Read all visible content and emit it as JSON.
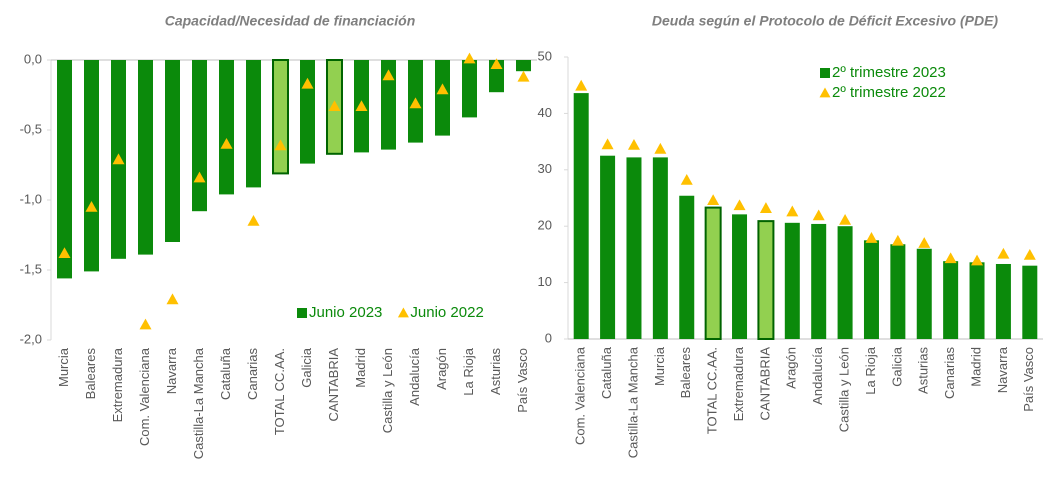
{
  "chart_data": [
    {
      "type": "bar",
      "title": "Capacidad/Necesidad de financiación",
      "categories": [
        "Murcia",
        "Baleares",
        "Extremadura",
        "Com. Valenciana",
        "Navarra",
        "Castilla-La Mancha",
        "Cataluña",
        "Canarias",
        "TOTAL CC.AA.",
        "Galicia",
        "CANTABRIA",
        "Madrid",
        "Castilla y León",
        "Andalucía",
        "Aragón",
        "La Rioja",
        "Asturias",
        "País Vasco"
      ],
      "series": [
        {
          "name": "Junio 2023",
          "mark": "bar",
          "color": "#0b8a0b",
          "colors": [
            "#0b8a0b",
            "#0b8a0b",
            "#0b8a0b",
            "#0b8a0b",
            "#0b8a0b",
            "#0b8a0b",
            "#0b8a0b",
            "#0b8a0b",
            "#92d050",
            "#0b8a0b",
            "#92d050",
            "#0b8a0b",
            "#0b8a0b",
            "#0b8a0b",
            "#0b8a0b",
            "#0b8a0b",
            "#0b8a0b",
            "#0b8a0b"
          ],
          "values": [
            -1.56,
            -1.51,
            -1.42,
            -1.39,
            -1.3,
            -1.08,
            -0.96,
            -0.91,
            -0.81,
            -0.74,
            -0.67,
            -0.66,
            -0.64,
            -0.59,
            -0.54,
            -0.41,
            -0.23,
            -0.08
          ]
        },
        {
          "name": "Junio 2022",
          "mark": "triangle",
          "color": "#ffc000",
          "values": [
            -1.38,
            -1.05,
            -0.71,
            -1.89,
            -1.71,
            -0.84,
            -0.6,
            -1.15,
            -0.61,
            -0.17,
            -0.33,
            -0.33,
            -0.11,
            -0.31,
            -0.21,
            0.01,
            -0.03,
            -0.12
          ]
        }
      ],
      "ylim": [
        -2,
        0
      ],
      "yticks": [
        {
          "value": 0,
          "label": "0,0"
        },
        {
          "value": -0.5,
          "label": "-0,5"
        },
        {
          "value": -1,
          "label": "-1,0"
        },
        {
          "value": -1.5,
          "label": "-1,5"
        },
        {
          "value": -2,
          "label": "-2,0"
        }
      ],
      "legend": "lower right"
    },
    {
      "type": "bar",
      "title": "Deuda según el Protocolo de Déficit Excesivo (PDE)",
      "categories": [
        "Com. Valenciana",
        "Cataluña",
        "Castilla-La Mancha",
        "Murcia",
        "Baleares",
        "TOTAL CC.AA.",
        "Extremadura",
        "CANTABRIA",
        "Aragón",
        "Andalucía",
        "Castilla y León",
        "La Rioja",
        "Galicia",
        "Asturias",
        "Canarias",
        "Madrid",
        "Navarra",
        "País Vasco"
      ],
      "series": [
        {
          "name": "2º trimestre 2023",
          "mark": "bar",
          "color": "#0b8a0b",
          "colors": [
            "#0b8a0b",
            "#0b8a0b",
            "#0b8a0b",
            "#0b8a0b",
            "#0b8a0b",
            "#92d050",
            "#0b8a0b",
            "#92d050",
            "#0b8a0b",
            "#0b8a0b",
            "#0b8a0b",
            "#0b8a0b",
            "#0b8a0b",
            "#0b8a0b",
            "#0b8a0b",
            "#0b8a0b",
            "#0b8a0b",
            "#0b8a0b"
          ],
          "values": [
            43.6,
            32.5,
            32.2,
            32.2,
            25.4,
            23.3,
            22.1,
            20.9,
            20.6,
            20.4,
            20.0,
            17.5,
            16.8,
            16.0,
            13.8,
            13.6,
            13.3,
            13.0
          ]
        },
        {
          "name": "2º trimestre 2022",
          "mark": "triangle",
          "color": "#ffc000",
          "values": [
            44.9,
            34.5,
            34.4,
            33.7,
            28.2,
            24.6,
            23.7,
            23.2,
            22.6,
            21.9,
            21.1,
            17.9,
            17.4,
            17.0,
            14.3,
            13.9,
            15.1,
            14.9
          ]
        }
      ],
      "ylim": [
        0,
        50
      ],
      "yticks": [
        0,
        10,
        20,
        30,
        40,
        50
      ],
      "legend": "upper right"
    }
  ]
}
